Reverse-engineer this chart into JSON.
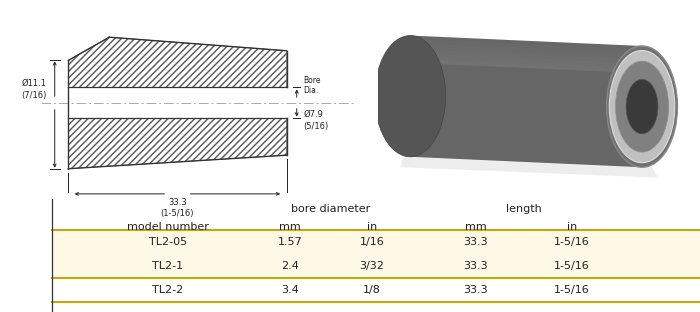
{
  "bg_color": "#ffffff",
  "table_row_color": "#fef9e7",
  "table_border_color": "#c8a800",
  "col_headers_line1_bore": "bore diameter",
  "col_headers_line1_len": "length",
  "col_headers_line2": [
    "model number",
    "mm",
    "in",
    "mm",
    "in"
  ],
  "rows": [
    [
      "TL2-05",
      "1.57",
      "1/16",
      "33.3",
      "1-5/16"
    ],
    [
      "TL2-1",
      "2.4",
      "3/32",
      "33.3",
      "1-5/16"
    ],
    [
      "TL2-2",
      "3.4",
      "1/8",
      "33.3",
      "1-5/16"
    ]
  ],
  "drawing_outer_dia_line1": "Ø11.1",
  "drawing_outer_dia_line2": "(7/16)",
  "drawing_bore_label": "Bore\nDia.",
  "drawing_bore_dia_line1": "Ø7.9",
  "drawing_bore_dia_line2": "(5/16)",
  "drawing_length_line1": "33.3",
  "drawing_length_line2": "(1-5/16)",
  "dim_color": "#222222",
  "hatch_lw": 0.5,
  "hatch_color": "#555555",
  "part_edge_color": "#333333",
  "center_line_color": "#aaaaaa"
}
